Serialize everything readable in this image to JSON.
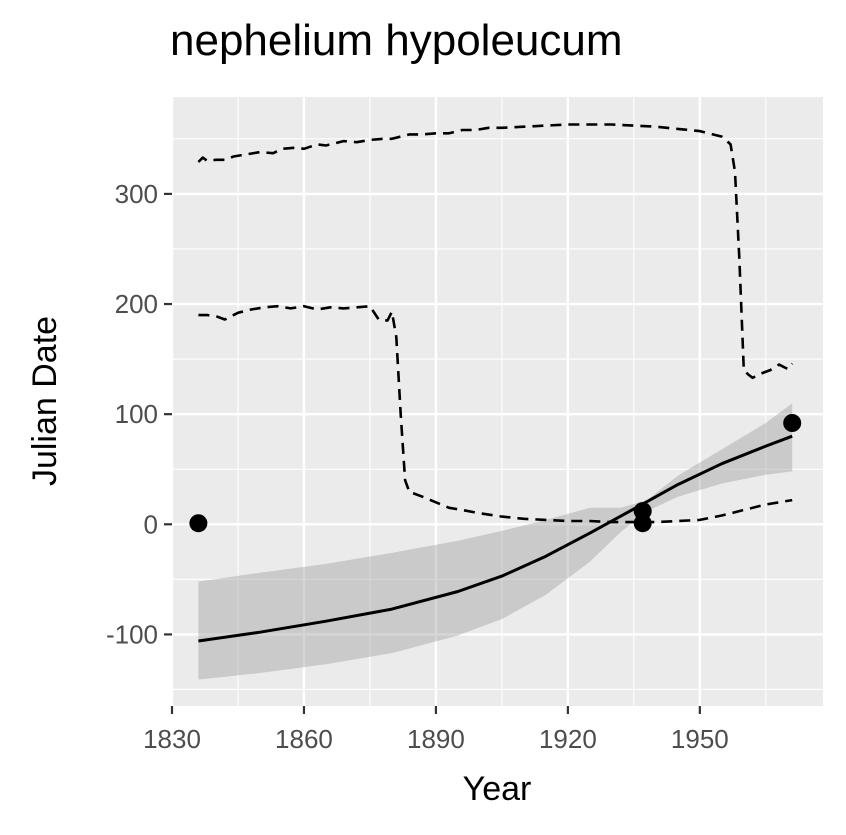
{
  "chart_data": {
    "type": "scatter",
    "title": "nephelium hypoleucum",
    "xlabel": "Year",
    "ylabel": "Julian Date",
    "xlim": [
      1830,
      1978
    ],
    "ylim": [
      -165,
      388
    ],
    "x_ticks": [
      1830,
      1860,
      1890,
      1920,
      1950
    ],
    "x_tick_labels": [
      "1830",
      "1860",
      "1890",
      "1920",
      "1950"
    ],
    "y_ticks": [
      -100,
      0,
      100,
      200,
      300
    ],
    "y_tick_labels": [
      "-100",
      "0",
      "100",
      "200",
      "300"
    ],
    "grid": true,
    "points": [
      {
        "x": 1836,
        "y": 1
      },
      {
        "x": 1937,
        "y": 12
      },
      {
        "x": 1937,
        "y": 1
      },
      {
        "x": 1971,
        "y": 92
      }
    ],
    "fit_line": {
      "x": [
        1836,
        1850,
        1865,
        1880,
        1895,
        1905,
        1915,
        1925,
        1935,
        1945,
        1955,
        1965,
        1971
      ],
      "y": [
        -106,
        -98,
        -88,
        -77,
        -61,
        -47,
        -29,
        -8,
        14,
        36,
        55,
        71,
        80
      ]
    },
    "confidence_band": {
      "x": [
        1836,
        1850,
        1865,
        1880,
        1895,
        1905,
        1915,
        1925,
        1932,
        1938,
        1945,
        1955,
        1965,
        1971
      ],
      "lower": [
        -141,
        -135,
        -127,
        -117,
        -101,
        -86,
        -64,
        -34,
        -7,
        12,
        25,
        37,
        45,
        48
      ],
      "upper": [
        -52,
        -44,
        -36,
        -26,
        -15,
        -6,
        4,
        15,
        15,
        22,
        44,
        68,
        92,
        110
      ]
    },
    "dashed_series": [
      {
        "x": [
          1836,
          1837,
          1838,
          1840,
          1842,
          1844,
          1847,
          1850,
          1853,
          1855,
          1858,
          1860,
          1863,
          1865,
          1867,
          1869,
          1872,
          1875,
          1878,
          1880,
          1882,
          1884,
          1887,
          1890,
          1893,
          1896,
          1899,
          1902,
          1905,
          1910,
          1915,
          1920,
          1925,
          1930,
          1935,
          1940,
          1945,
          1950,
          1952,
          1955,
          1957,
          1958,
          1959,
          1960,
          1961,
          1962,
          1964,
          1966,
          1968,
          1970,
          1971
        ],
        "y": [
          329,
          333,
          330,
          331,
          331,
          334,
          336,
          338,
          337,
          341,
          342,
          341,
          345,
          344,
          346,
          348,
          347,
          349,
          350,
          350,
          352,
          354,
          354,
          355,
          355,
          358,
          358,
          360,
          360,
          361,
          362,
          363,
          363,
          363,
          362,
          361,
          359,
          357,
          355,
          352,
          345,
          320,
          240,
          140,
          136,
          133,
          137,
          140,
          145,
          141,
          146
        ]
      },
      {
        "x": [
          1836,
          1838,
          1840,
          1842,
          1845,
          1848,
          1851,
          1854,
          1857,
          1860,
          1863,
          1866,
          1869,
          1872,
          1875,
          1877,
          1879,
          1880,
          1881,
          1882,
          1883,
          1884,
          1885,
          1887,
          1890,
          1893,
          1896,
          1900,
          1905,
          1910,
          1915,
          1920,
          1925,
          1930,
          1935,
          1940,
          1945,
          1950,
          1955,
          1960,
          1965,
          1971
        ],
        "y": [
          190,
          190,
          189,
          186,
          192,
          195,
          197,
          198,
          196,
          198,
          195,
          197,
          196,
          197,
          198,
          186,
          185,
          193,
          170,
          100,
          40,
          29,
          28,
          25,
          20,
          15,
          13,
          10,
          7,
          5,
          4,
          3,
          3,
          2,
          2,
          2,
          3,
          4,
          8,
          13,
          18,
          22
        ]
      }
    ]
  }
}
